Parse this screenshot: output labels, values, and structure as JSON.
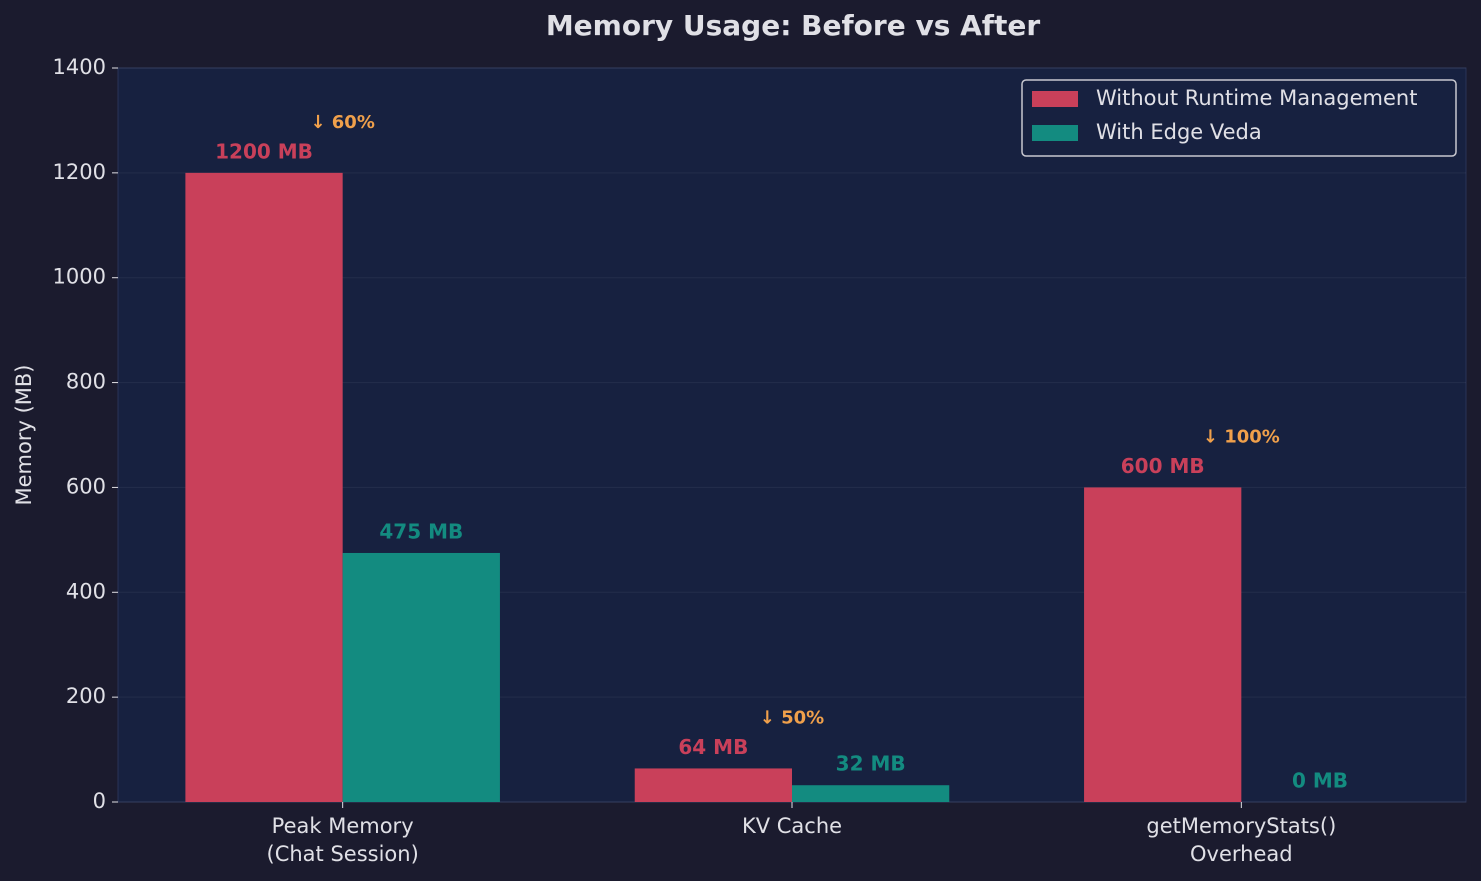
{
  "chart_data": {
    "type": "bar",
    "title": "Memory Usage: Before vs After",
    "ylabel": "Memory (MB)",
    "categories": [
      "Peak Memory\n(Chat Session)",
      "KV Cache",
      "getMemoryStats()\nOverhead"
    ],
    "series": [
      {
        "name": "Without Runtime Management",
        "color": "#c9405a",
        "values": [
          1200,
          64,
          600
        ],
        "value_labels": [
          "1200 MB",
          "64 MB",
          "600 MB"
        ]
      },
      {
        "name": "With Edge Veda",
        "color": "#138b80",
        "values": [
          475,
          32,
          0
        ],
        "value_labels": [
          "475 MB",
          "32 MB",
          "0 MB"
        ]
      }
    ],
    "annotations": [
      "↓ 60%",
      "↓ 50%",
      "↓ 100%"
    ],
    "annotation_color": "#f0a04b",
    "ylim": [
      0,
      1400
    ],
    "yticks": [
      0,
      200,
      400,
      600,
      800,
      1000,
      1200,
      1400
    ],
    "grid": true,
    "legend": "upper right"
  }
}
